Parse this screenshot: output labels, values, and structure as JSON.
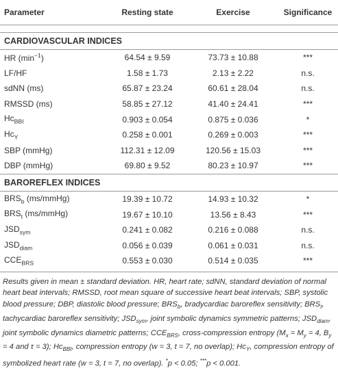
{
  "table": {
    "header": [
      "Parameter",
      "Resting state",
      "Exercise",
      "Significance"
    ],
    "sections": [
      {
        "title": "CARDIOVASCULAR INDICES",
        "rows": [
          {
            "label": {
              "text": "HR (min",
              "sup": "−1",
              "after": ")"
            },
            "rest": "64.54 ± 9.59",
            "exercise": "73.73 ± 10.88",
            "sig": "***"
          },
          {
            "label": {
              "text": "LF/HF"
            },
            "rest": "1.58 ± 1.73",
            "exercise": "2.13 ± 2.22",
            "sig": "n.s."
          },
          {
            "label": {
              "text": "sdNN (ms)"
            },
            "rest": "65.87 ± 23.24",
            "exercise": "60.61 ± 28.04",
            "sig": "n.s."
          },
          {
            "label": {
              "text": "RMSSD (ms)"
            },
            "rest": "58.85 ± 27.12",
            "exercise": "41.40 ± 24.41",
            "sig": "***"
          },
          {
            "label": {
              "text": "Hc",
              "sub": "BBI"
            },
            "rest": "0.903 ± 0.054",
            "exercise": "0.875 ± 0.036",
            "sig": "*"
          },
          {
            "label": {
              "text": "Hc",
              "sub": "Y"
            },
            "rest": "0.258 ± 0.001",
            "exercise": "0.269 ± 0.003",
            "sig": "***"
          },
          {
            "label": {
              "text": "SBP (mmHg)"
            },
            "rest": "112.31 ± 12.09",
            "exercise": "120.56 ± 15.03",
            "sig": "***"
          },
          {
            "label": {
              "text": "DBP (mmHg)"
            },
            "rest": "69.80 ± 9.52",
            "exercise": "80.23 ± 10.97",
            "sig": "***"
          }
        ]
      },
      {
        "title": "BAROREFLEX INDICES",
        "rows": [
          {
            "label": {
              "text": "BRS",
              "sub": "b",
              "after": " (ms/mmHg)"
            },
            "rest": "19.39 ± 10.72",
            "exercise": "14.93 ± 10.32",
            "sig": "*"
          },
          {
            "label": {
              "text": "BRS",
              "sub": "t",
              "after": " (ms/mmHg)"
            },
            "rest": "19.67 ± 10.10",
            "exercise": "13.56 ± 8.43",
            "sig": "***"
          },
          {
            "label": {
              "text": "JSD",
              "sub": "sym"
            },
            "rest": "0.241 ± 0.082",
            "exercise": "0.216 ± 0.088",
            "sig": "n.s."
          },
          {
            "label": {
              "text": "JSD",
              "sub": "diam"
            },
            "rest": "0.056 ± 0.039",
            "exercise": "0.061 ± 0.031",
            "sig": "n.s."
          },
          {
            "label": {
              "text": "CCE",
              "sub": "BRS"
            },
            "rest": "0.553 ± 0.030",
            "exercise": "0.514 ± 0.035",
            "sig": "***"
          }
        ]
      }
    ]
  },
  "footnote": [
    "Results given in mean ± standard deviation. HR, heart rate; sdNN, standard deviation of normal heart beat intervals; RMSSD, root mean square of successive heart beat intervals; SBP, systolic blood pressure; DBP, diastolic blood pressure; BRS",
    {
      "sub": "b"
    },
    ", bradycardiac baroreflex sensitivity; BRS",
    {
      "sub": "t"
    },
    ", tachycardiac baroreflex sensitivity; JSD",
    {
      "sub": "sym"
    },
    ", joint symbolic dynamics symmetric patterns; JSD",
    {
      "sub": "diam"
    },
    ", joint symbolic dynamics diametric patterns; CCE",
    {
      "sub": "BRS"
    },
    ", cross-compression entropy (M",
    {
      "sub": "x"
    },
    " = M",
    {
      "sub": "y"
    },
    " = 4, B",
    {
      "sub": "y"
    },
    " = 4 and τ = 3); Hc",
    {
      "sub": "BBI"
    },
    ", compression entropy (w = 3, t = 7, no overlap); Hc",
    {
      "sub": "Y"
    },
    ", compression entropy of symbolized heart rate (w = 3, t = 7, no overlap). ",
    {
      "sup": "*"
    },
    "p < 0.05; ",
    {
      "sup": "***"
    },
    "p < 0.001."
  ]
}
